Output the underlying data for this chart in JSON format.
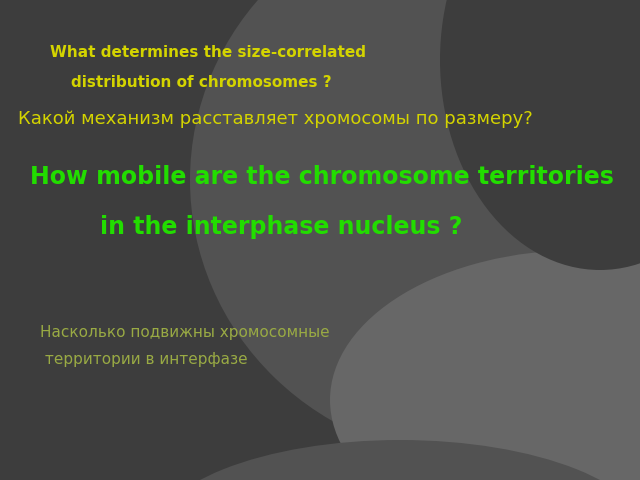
{
  "bg_dark": "#3d3d3d",
  "bg_medium": "#525252",
  "bg_light": "#676767",
  "line1": "What determines the size-correlated",
  "line2": "    distribution of chromosomes ?",
  "line3": "Какой механизм расставляет хромосомы по размеру?",
  "line4": "How mobile are the chromosome territories",
  "line5": "in the interphase nucleus ?",
  "line6": "Насколько подвижны хромосомные",
  "line7": " территории в интерфазе",
  "color_yellow": "#d4d400",
  "color_bright_green": "#22dd00",
  "color_soft_green": "#99aa44",
  "figsize": [
    6.4,
    4.8
  ],
  "dpi": 100
}
